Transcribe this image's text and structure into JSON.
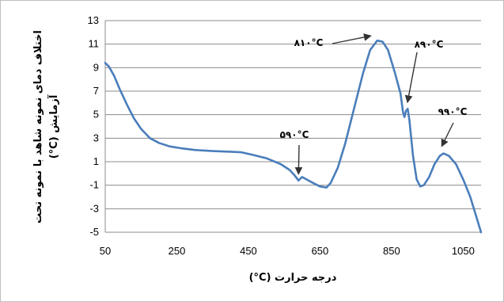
{
  "chart_data": {
    "type": "line",
    "title": "",
    "xlabel": "درجه حرارت (C°)",
    "ylabel_line1": "اختلاف دمای نمونه شاهد با نمونه تحت",
    "ylabel_line2": "آزمایش (C°)",
    "xlim": [
      50,
      1100
    ],
    "ylim": [
      -5,
      13
    ],
    "xticks": [
      50,
      250,
      450,
      650,
      850,
      1050
    ],
    "yticks": [
      -5,
      -3,
      -1,
      1,
      3,
      5,
      7,
      9,
      11,
      13
    ],
    "grid": "horizontal",
    "series": [
      {
        "color": "#4a7ebb",
        "points": [
          [
            50,
            9.4
          ],
          [
            60,
            9.1
          ],
          [
            75,
            8.3
          ],
          [
            90,
            7.2
          ],
          [
            110,
            5.9
          ],
          [
            130,
            4.7
          ],
          [
            150,
            3.8
          ],
          [
            175,
            3.0
          ],
          [
            200,
            2.6
          ],
          [
            230,
            2.3
          ],
          [
            260,
            2.15
          ],
          [
            300,
            2.0
          ],
          [
            350,
            1.9
          ],
          [
            400,
            1.85
          ],
          [
            430,
            1.8
          ],
          [
            460,
            1.6
          ],
          [
            500,
            1.3
          ],
          [
            540,
            0.8
          ],
          [
            565,
            0.3
          ],
          [
            580,
            -0.2
          ],
          [
            590,
            -0.6
          ],
          [
            600,
            -0.3
          ],
          [
            612,
            -0.5
          ],
          [
            630,
            -0.8
          ],
          [
            650,
            -1.1
          ],
          [
            668,
            -1.2
          ],
          [
            680,
            -0.8
          ],
          [
            700,
            0.5
          ],
          [
            720,
            2.5
          ],
          [
            745,
            5.5
          ],
          [
            770,
            8.5
          ],
          [
            790,
            10.5
          ],
          [
            810,
            11.3
          ],
          [
            825,
            11.2
          ],
          [
            840,
            10.5
          ],
          [
            860,
            8.5
          ],
          [
            875,
            6.8
          ],
          [
            882,
            5.2
          ],
          [
            886,
            4.8
          ],
          [
            890,
            5.3
          ],
          [
            895,
            5.5
          ],
          [
            900,
            4.5
          ],
          [
            910,
            1.5
          ],
          [
            920,
            -0.5
          ],
          [
            930,
            -1.1
          ],
          [
            940,
            -1.0
          ],
          [
            955,
            -0.3
          ],
          [
            970,
            0.8
          ],
          [
            985,
            1.5
          ],
          [
            995,
            1.7
          ],
          [
            1010,
            1.5
          ],
          [
            1030,
            0.8
          ],
          [
            1050,
            -0.5
          ],
          [
            1070,
            -2.0
          ],
          [
            1085,
            -3.5
          ],
          [
            1100,
            -5.0
          ]
        ]
      }
    ],
    "annotations": [
      {
        "text": "۸۱۰°C",
        "x": 810,
        "y": 11.3
      },
      {
        "text": "۸۹۰°C",
        "x": 890,
        "y": 5.5
      },
      {
        "text": "۹۹۰°C",
        "x": 990,
        "y": 1.7
      },
      {
        "text": "۵۹۰°C",
        "x": 590,
        "y": -0.6
      }
    ]
  }
}
